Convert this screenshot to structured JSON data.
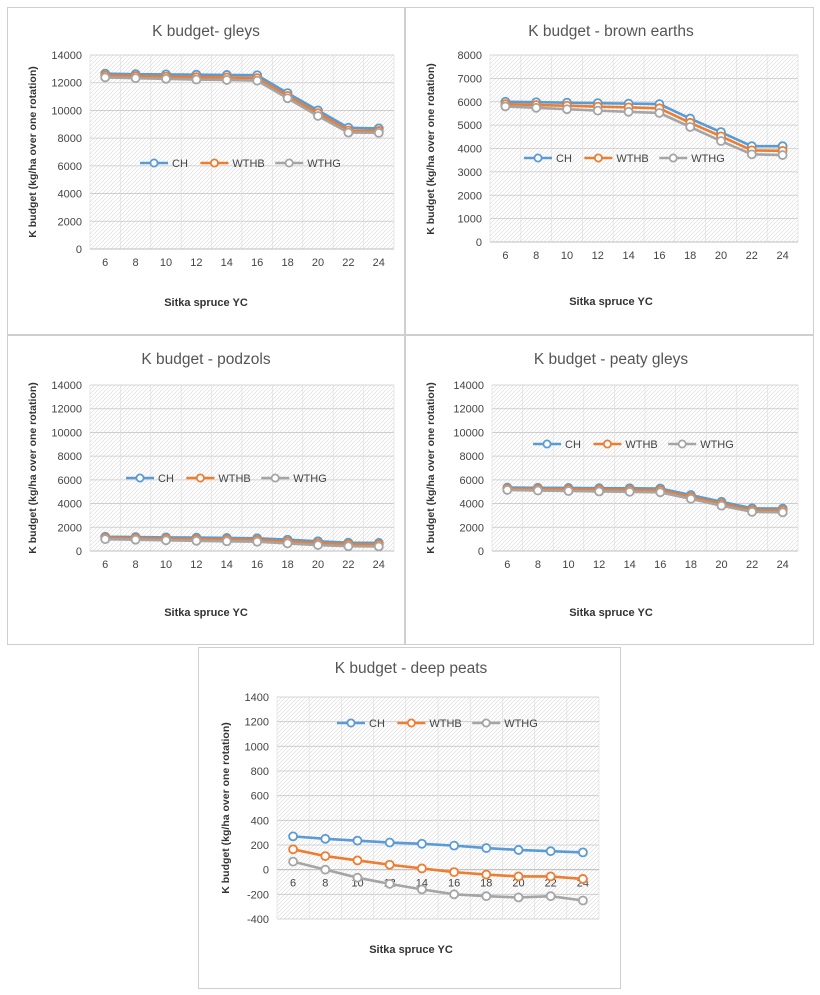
{
  "colors": {
    "CH": "#5B9BD5",
    "WTHB": "#ED7D31",
    "WTHG": "#A5A5A5"
  },
  "legend_labels": [
    "CH",
    "WTHB",
    "WTHG"
  ],
  "chart_data": [
    {
      "type": "line",
      "title": "K budget- gleys",
      "xlabel": "Sitka spruce YC",
      "ylabel": "K budget (kg/ha over one rotation)",
      "categories": [
        "6",
        "8",
        "10",
        "12",
        "14",
        "16",
        "18",
        "20",
        "22",
        "24"
      ],
      "ylim": [
        0,
        14000
      ],
      "yticks": [
        0,
        2000,
        4000,
        6000,
        8000,
        10000,
        12000,
        14000
      ],
      "series": [
        {
          "name": "CH",
          "values": [
            12650,
            12620,
            12600,
            12580,
            12560,
            12540,
            11250,
            10000,
            8750,
            8700
          ]
        },
        {
          "name": "WTHB",
          "values": [
            12520,
            12480,
            12440,
            12400,
            12380,
            12330,
            11050,
            9800,
            8550,
            8520
          ]
        },
        {
          "name": "WTHG",
          "values": [
            12380,
            12330,
            12280,
            12230,
            12200,
            12150,
            10880,
            9600,
            8400,
            8380
          ]
        }
      ]
    },
    {
      "type": "line",
      "title": "K budget - brown earths",
      "xlabel": "Sitka spruce YC",
      "ylabel": "K budget (kg/ha over one rotation)",
      "categories": [
        "6",
        "8",
        "10",
        "12",
        "14",
        "16",
        "18",
        "20",
        "22",
        "24"
      ],
      "ylim": [
        0,
        8000
      ],
      "yticks": [
        0,
        1000,
        2000,
        3000,
        4000,
        5000,
        6000,
        7000,
        8000
      ],
      "series": [
        {
          "name": "CH",
          "values": [
            6000,
            5980,
            5960,
            5940,
            5920,
            5900,
            5280,
            4700,
            4100,
            4100
          ]
        },
        {
          "name": "WTHB",
          "values": [
            5900,
            5860,
            5830,
            5790,
            5760,
            5720,
            5100,
            4520,
            3920,
            3900
          ]
        },
        {
          "name": "WTHG",
          "values": [
            5800,
            5740,
            5680,
            5620,
            5570,
            5520,
            4920,
            4320,
            3750,
            3720
          ]
        }
      ]
    },
    {
      "type": "line",
      "title": "K budget - podzols",
      "xlabel": "Sitka spruce YC",
      "ylabel": "K budget (kg/ha over one rotation)",
      "categories": [
        "6",
        "8",
        "10",
        "12",
        "14",
        "16",
        "18",
        "20",
        "22",
        "24"
      ],
      "ylim": [
        0,
        14000
      ],
      "yticks": [
        0,
        2000,
        4000,
        6000,
        8000,
        10000,
        12000,
        14000
      ],
      "series": [
        {
          "name": "CH",
          "values": [
            1200,
            1180,
            1150,
            1130,
            1100,
            1070,
            950,
            820,
            700,
            680
          ]
        },
        {
          "name": "WTHB",
          "values": [
            1100,
            1070,
            1030,
            1000,
            970,
            930,
            800,
            660,
            560,
            540
          ]
        },
        {
          "name": "WTHG",
          "values": [
            1000,
            950,
            900,
            860,
            820,
            780,
            640,
            500,
            400,
            380
          ]
        }
      ]
    },
    {
      "type": "line",
      "title": "K budget - peaty gleys",
      "xlabel": "Sitka spruce YC",
      "ylabel": "K budget (kg/ha over one rotation)",
      "categories": [
        "6",
        "8",
        "10",
        "12",
        "14",
        "16",
        "18",
        "20",
        "22",
        "24"
      ],
      "ylim": [
        0,
        14000
      ],
      "yticks": [
        0,
        2000,
        4000,
        6000,
        8000,
        10000,
        12000,
        14000
      ],
      "series": [
        {
          "name": "CH",
          "values": [
            5350,
            5330,
            5320,
            5300,
            5290,
            5270,
            4720,
            4150,
            3600,
            3580
          ]
        },
        {
          "name": "WTHB",
          "values": [
            5250,
            5220,
            5200,
            5170,
            5150,
            5120,
            4560,
            3980,
            3440,
            3420
          ]
        },
        {
          "name": "WTHG",
          "values": [
            5150,
            5100,
            5060,
            5020,
            4990,
            4950,
            4400,
            3820,
            3300,
            3260
          ]
        }
      ]
    },
    {
      "type": "line",
      "title": "K budget - deep peats",
      "xlabel": "Sitka spruce YC",
      "ylabel": "K budget (kg/ha over one rotation)",
      "categories": [
        "6",
        "8",
        "10",
        "12",
        "14",
        "16",
        "18",
        "20",
        "22",
        "24"
      ],
      "ylim": [
        -400,
        1400
      ],
      "yticks": [
        -400,
        -200,
        0,
        200,
        400,
        600,
        800,
        1000,
        1200,
        1400
      ],
      "series": [
        {
          "name": "CH",
          "values": [
            270,
            250,
            235,
            220,
            210,
            195,
            175,
            160,
            150,
            140
          ]
        },
        {
          "name": "WTHB",
          "values": [
            165,
            110,
            75,
            40,
            10,
            -20,
            -40,
            -55,
            -55,
            -75
          ]
        },
        {
          "name": "WTHG",
          "values": [
            65,
            0,
            -65,
            -115,
            -160,
            -200,
            -215,
            -225,
            -215,
            -250
          ]
        }
      ]
    }
  ]
}
